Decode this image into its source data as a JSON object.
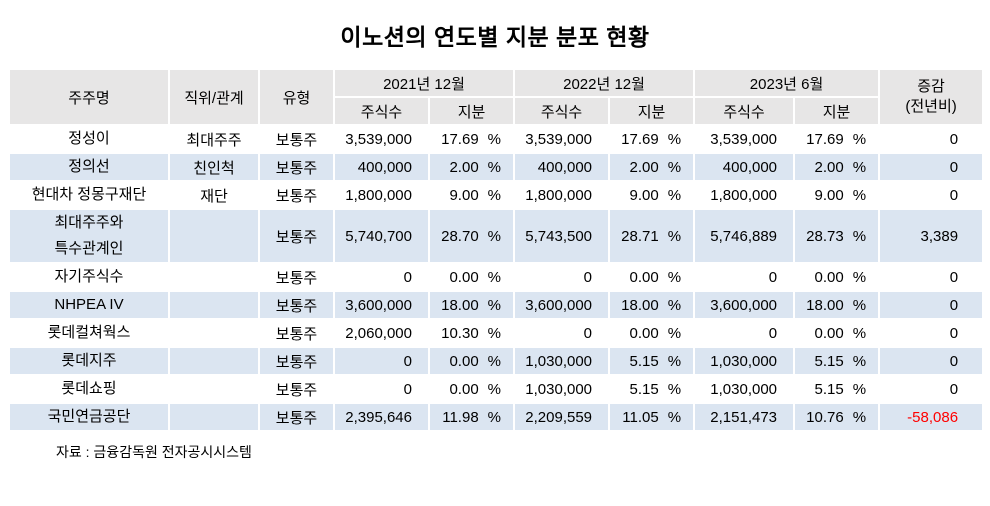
{
  "title": "이노션의 연도별 지분 분포 현황",
  "source_note": "자료 : 금융감독원 전자공시시스템",
  "colors": {
    "header_bg": "#e7e6e6",
    "alt_row_bg": "#dbe5f1",
    "negative_text": "#ff0000"
  },
  "chart_data": {
    "type": "table",
    "title": "이노션의 연도별 지분 분포 현황",
    "columns": {
      "shareholder": "주주명",
      "position": "직위/관계",
      "type": "유형",
      "periods": [
        "2021년 12월",
        "2022년 12월",
        "2023년 6월"
      ],
      "shares": "주식수",
      "stake": "지분",
      "change": "증감",
      "change_sub": "(전년비)",
      "percent_sign": "%"
    },
    "rows": [
      {
        "name": "정성이",
        "position": "최대주주",
        "type": "보통주",
        "shares": [
          "3,539,000",
          "3,539,000",
          "3,539,000"
        ],
        "stake": [
          "17.69",
          "17.69",
          "17.69"
        ],
        "change": "0"
      },
      {
        "name": "정의선",
        "position": "친인척",
        "type": "보통주",
        "shares": [
          "400,000",
          "400,000",
          "400,000"
        ],
        "stake": [
          "2.00",
          "2.00",
          "2.00"
        ],
        "change": "0"
      },
      {
        "name": "현대차 정몽구재단",
        "position": "재단",
        "type": "보통주",
        "shares": [
          "1,800,000",
          "1,800,000",
          "1,800,000"
        ],
        "stake": [
          "9.00",
          "9.00",
          "9.00"
        ],
        "change": "0"
      },
      {
        "name": "최대주주와\n특수관계인",
        "position": "",
        "type": "보통주",
        "shares": [
          "5,740,700",
          "5,743,500",
          "5,746,889"
        ],
        "stake": [
          "28.70",
          "28.71",
          "28.73"
        ],
        "change": "3,389"
      },
      {
        "name": "자기주식수",
        "position": "",
        "type": "보통주",
        "shares": [
          "0",
          "0",
          "0"
        ],
        "stake": [
          "0.00",
          "0.00",
          "0.00"
        ],
        "change": "0"
      },
      {
        "name": "NHPEA IV",
        "position": "",
        "type": "보통주",
        "shares": [
          "3,600,000",
          "3,600,000",
          "3,600,000"
        ],
        "stake": [
          "18.00",
          "18.00",
          "18.00"
        ],
        "change": "0"
      },
      {
        "name": "롯데컬쳐웍스",
        "position": "",
        "type": "보통주",
        "shares": [
          "2,060,000",
          "0",
          "0"
        ],
        "stake": [
          "10.30",
          "0.00",
          "0.00"
        ],
        "change": "0"
      },
      {
        "name": "롯데지주",
        "position": "",
        "type": "보통주",
        "shares": [
          "0",
          "1,030,000",
          "1,030,000"
        ],
        "stake": [
          "0.00",
          "5.15",
          "5.15"
        ],
        "change": "0"
      },
      {
        "name": "롯데쇼핑",
        "position": "",
        "type": "보통주",
        "shares": [
          "0",
          "1,030,000",
          "1,030,000"
        ],
        "stake": [
          "0.00",
          "5.15",
          "5.15"
        ],
        "change": "0"
      },
      {
        "name": "국민연금공단",
        "position": "",
        "type": "보통주",
        "shares": [
          "2,395,646",
          "2,209,559",
          "2,151,473"
        ],
        "stake": [
          "11.98",
          "11.05",
          "10.76"
        ],
        "change": "-58,086"
      }
    ]
  }
}
